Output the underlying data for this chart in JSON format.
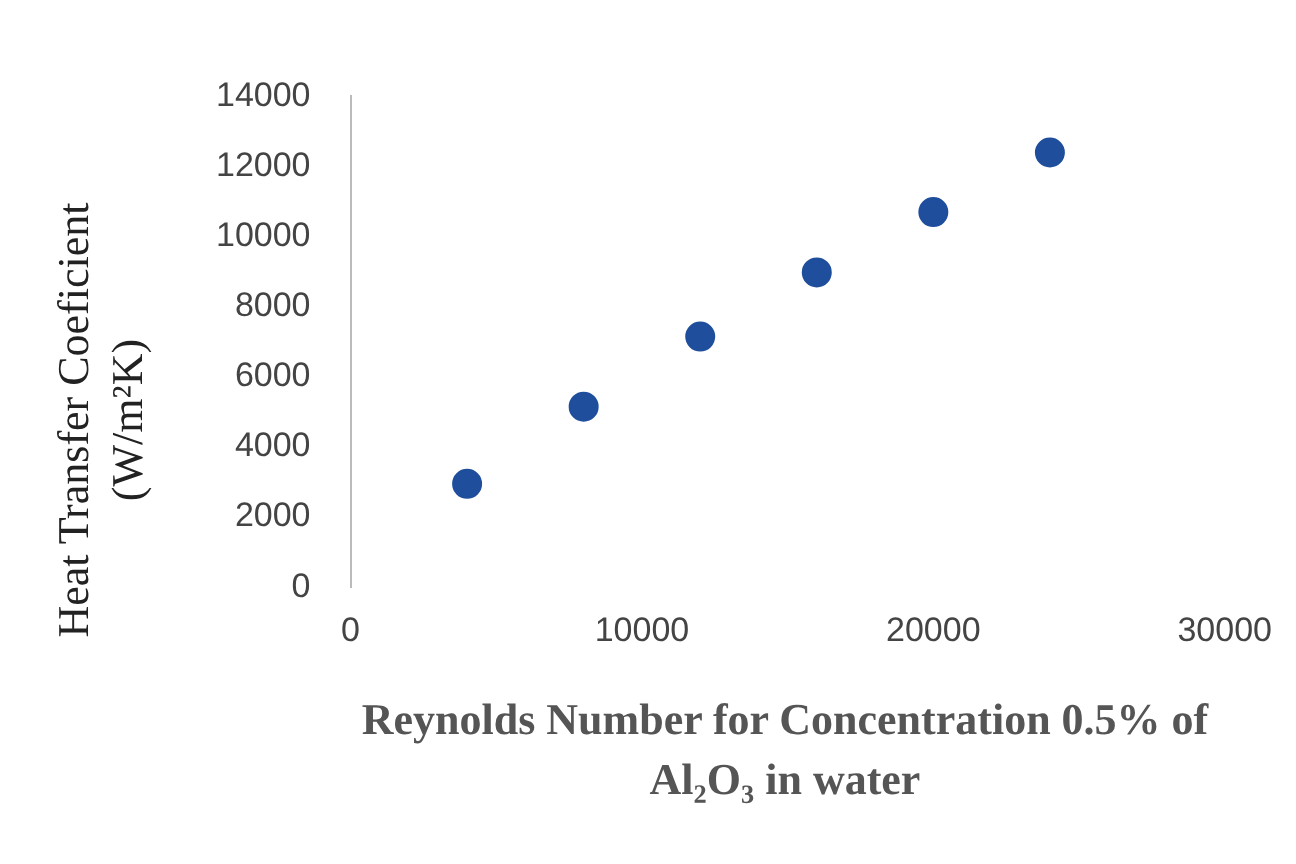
{
  "chart_data": {
    "type": "scatter",
    "xlabel": "Reynolds Number for Concentration 0.5% of Al₂O₃ in water",
    "ylabel": "Heat Transfer Coeficient (W/m²K)",
    "x": [
      4000,
      8000,
      12000,
      16000,
      20000,
      24000
    ],
    "values": [
      2950,
      5150,
      7150,
      8980,
      10700,
      12400
    ],
    "color": "#1f4e9c",
    "marker": "circle",
    "xlim": [
      0,
      30000
    ],
    "xticks": [
      0,
      10000,
      20000,
      30000
    ],
    "ylim": [
      0,
      14000
    ],
    "yticks": [
      0,
      2000,
      4000,
      6000,
      8000,
      10000,
      12000,
      14000
    ]
  }
}
